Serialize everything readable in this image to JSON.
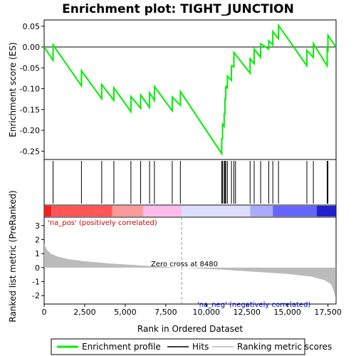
{
  "chart_data": {
    "type": "line",
    "title": "Enrichment plot: TIGHT_JUNCTION",
    "xlabel": "Rank in Ordered Dataset",
    "ylabel_top": "Enrichment score (ES)",
    "ylabel_bottom": "Ranked list metric (PreRanked)",
    "xlim": [
      0,
      18000
    ],
    "ylim_top": [
      -0.27,
      0.065
    ],
    "ylim_bottom": [
      -2.6,
      3.6
    ],
    "x_ticks": [
      0,
      2500,
      5000,
      7500,
      10000,
      12500,
      15000,
      17500
    ],
    "x_tick_labels": [
      "0",
      "2,500",
      "5,000",
      "7,500",
      "10,000",
      "12,500",
      "15,000",
      "17,500"
    ],
    "y_ticks_top": [
      0.05,
      0.0,
      -0.05,
      -0.1,
      -0.15,
      -0.2,
      -0.25
    ],
    "y_tick_labels_top": [
      "0.05",
      "0.00",
      "-0.05",
      "-0.10",
      "-0.15",
      "-0.20",
      "-0.25"
    ],
    "y_ticks_bottom": [
      3,
      2,
      1,
      0,
      -1,
      -2
    ],
    "y_tick_labels_bottom": [
      "3",
      "2",
      "1",
      "0",
      "-1",
      "-2"
    ],
    "hits": [
      550,
      2300,
      3550,
      4300,
      5350,
      5950,
      6500,
      6800,
      7900,
      8400,
      10950,
      11000,
      11100,
      11150,
      11200,
      11300,
      11550,
      11700,
      11800,
      12700,
      12950,
      13350,
      13850,
      14100,
      14450,
      16200,
      16600,
      17450,
      17500
    ],
    "es_curve": [
      [
        0,
        0.0
      ],
      [
        550,
        -0.032
      ],
      [
        551,
        0.005
      ],
      [
        2300,
        -0.093
      ],
      [
        2301,
        -0.057
      ],
      [
        3550,
        -0.124
      ],
      [
        3551,
        -0.09
      ],
      [
        4300,
        -0.128
      ],
      [
        4301,
        -0.098
      ],
      [
        5350,
        -0.155
      ],
      [
        5351,
        -0.119
      ],
      [
        5950,
        -0.147
      ],
      [
        5951,
        -0.115
      ],
      [
        6500,
        -0.145
      ],
      [
        6501,
        -0.11
      ],
      [
        6800,
        -0.128
      ],
      [
        6801,
        -0.095
      ],
      [
        7900,
        -0.153
      ],
      [
        7901,
        -0.12
      ],
      [
        8400,
        -0.14
      ],
      [
        8401,
        -0.107
      ],
      [
        10950,
        -0.256
      ],
      [
        10951,
        -0.22
      ],
      [
        11000,
        -0.22
      ],
      [
        11001,
        -0.185
      ],
      [
        11100,
        -0.19
      ],
      [
        11101,
        -0.16
      ],
      [
        11150,
        -0.16
      ],
      [
        11151,
        -0.125
      ],
      [
        11200,
        -0.125
      ],
      [
        11201,
        -0.093
      ],
      [
        11300,
        -0.1
      ],
      [
        11301,
        -0.07
      ],
      [
        11550,
        -0.08
      ],
      [
        11551,
        -0.045
      ],
      [
        11700,
        -0.048
      ],
      [
        11701,
        -0.013
      ],
      [
        12700,
        -0.063
      ],
      [
        12701,
        -0.028
      ],
      [
        12950,
        -0.04
      ],
      [
        12951,
        -0.005
      ],
      [
        13350,
        -0.025
      ],
      [
        13351,
        0.008
      ],
      [
        13850,
        -0.005
      ],
      [
        13851,
        0.015
      ],
      [
        14100,
        0.005
      ],
      [
        14101,
        0.037
      ],
      [
        14450,
        0.02
      ],
      [
        14451,
        0.052
      ],
      [
        16200,
        -0.045
      ],
      [
        16201,
        -0.008
      ],
      [
        16600,
        -0.025
      ],
      [
        16601,
        0.008
      ],
      [
        17450,
        -0.045
      ],
      [
        17451,
        -0.005
      ],
      [
        17500,
        -0.008
      ],
      [
        17501,
        0.028
      ],
      [
        17990,
        0.0
      ]
    ],
    "metric_profile": [
      [
        0,
        1.7
      ],
      [
        150,
        1.3
      ],
      [
        400,
        1.0
      ],
      [
        800,
        0.8
      ],
      [
        1500,
        0.6
      ],
      [
        2500,
        0.45
      ],
      [
        4000,
        0.3
      ],
      [
        6000,
        0.15
      ],
      [
        8480,
        0.0
      ],
      [
        11000,
        -0.15
      ],
      [
        13000,
        -0.3
      ],
      [
        15000,
        -0.45
      ],
      [
        16500,
        -0.65
      ],
      [
        17300,
        -0.9
      ],
      [
        17700,
        -1.2
      ],
      [
        17900,
        -1.8
      ],
      [
        17990,
        -2.4
      ]
    ],
    "zero_cross_label": "Zero cross at 8480",
    "zero_cross": 8480,
    "pos_label": "'na_pos' (positively correlated)",
    "neg_label": "'na_neg' (negatively correlated)",
    "legend": [
      "Enrichment profile",
      "Hits",
      "Ranking metric scores"
    ],
    "colors": {
      "es_line": "#00ee00",
      "hits": "#000000",
      "metric": "#bbbbbb",
      "pos_text": "#cc0000",
      "neg_text": "#0000cc",
      "band_pos_strong": "#ee2222",
      "band_pos_mid": "#ff5555",
      "band_pos_light": "#ff9999",
      "band_pos_pale": "#ffbbee",
      "band_neutral": "#ddddff",
      "band_neg_light": "#aaaaff",
      "band_neg_mid": "#6666ff",
      "band_neg_strong": "#2222cc"
    }
  }
}
